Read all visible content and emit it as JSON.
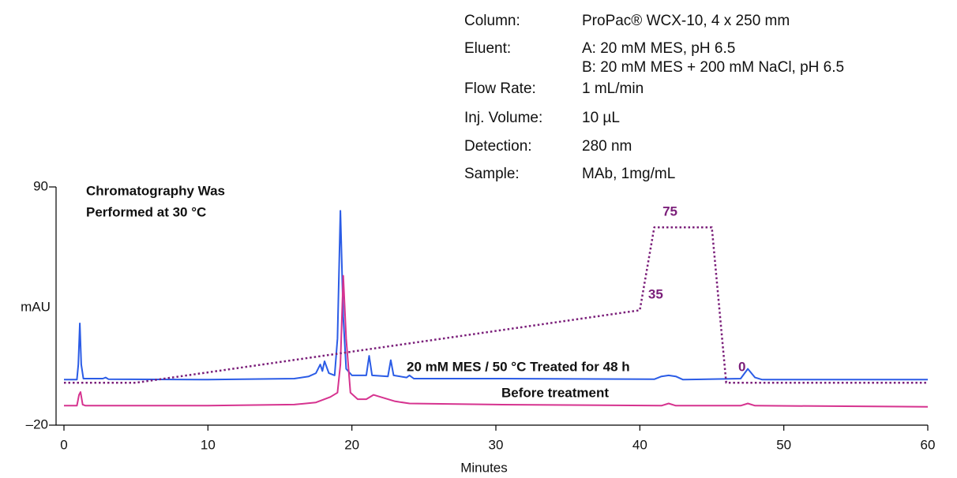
{
  "chart_data": {
    "type": "line",
    "xlabel": "Minutes",
    "ylabel": "mAU",
    "annotation": [
      "Chromatography Was",
      "Performed at 30 °C"
    ],
    "conditions": [
      {
        "label": "Column:",
        "value": [
          "ProPac® WCX-10, 4 x 250 mm"
        ]
      },
      {
        "label": "Eluent:",
        "value": [
          "A: 20 mM MES, pH 6.5",
          "B: 20 mM MES + 200 mM NaCl, pH 6.5"
        ]
      },
      {
        "label": "Flow Rate:",
        "value": [
          "1 mL/min"
        ]
      },
      {
        "label": "Inj. Volume:",
        "value": [
          "10 µL"
        ]
      },
      {
        "label": "Detection:",
        "value": [
          "280 nm"
        ]
      },
      {
        "label": "Sample:",
        "value": [
          "MAb, 1mg/mL"
        ]
      }
    ],
    "xlim": [
      0,
      60
    ],
    "xticks": [
      0,
      10,
      20,
      30,
      40,
      50,
      60
    ],
    "ylim": [
      -20,
      90
    ],
    "yticks": [
      {
        "value": -20,
        "label": "–20"
      },
      90
    ],
    "y2lim": [
      -20.5,
      94.5
    ],
    "series": [
      {
        "name": "20 mM MES / 50 °C Treated for 48 h",
        "color": "#2b5ce6",
        "x": [
          0,
          0.9,
          1.0,
          1.1,
          1.2,
          1.35,
          2.7,
          2.9,
          3.1,
          10,
          16,
          17,
          17.5,
          17.8,
          17.95,
          18.1,
          18.4,
          18.8,
          19.0,
          19.2,
          19.4,
          19.6,
          20,
          21.0,
          21.2,
          21.4,
          22.5,
          22.7,
          22.9,
          23.8,
          24.0,
          24.3,
          30,
          41,
          41.5,
          42,
          42.5,
          43,
          47,
          47.5,
          48,
          48.5,
          60
        ],
        "values": [
          1,
          1,
          8,
          27,
          8,
          1.5,
          1.5,
          2,
          1.2,
          1,
          1.5,
          2.5,
          4,
          8,
          5,
          9.5,
          4,
          3,
          20,
          79,
          30,
          6,
          3,
          3,
          12,
          3,
          2.5,
          10,
          3,
          2,
          3,
          1.5,
          1.5,
          1.2,
          2.5,
          3,
          2.5,
          1,
          1.5,
          6,
          2,
          1,
          1
        ]
      },
      {
        "name": "Before treatment",
        "color": "#d6338f",
        "x": [
          0,
          0.9,
          1.05,
          1.15,
          1.3,
          1.5,
          10,
          16,
          17.5,
          18.5,
          19.0,
          19.2,
          19.4,
          19.6,
          19.9,
          20.4,
          21,
          21.5,
          22,
          23,
          24,
          30,
          41.5,
          42,
          42.5,
          47,
          47.5,
          48,
          60
        ],
        "values": [
          -11,
          -11,
          -6,
          -4.7,
          -10.5,
          -11,
          -11,
          -10.5,
          -9.5,
          -7,
          -5,
          8,
          49,
          20,
          -5,
          -8,
          -8,
          -6,
          -7,
          -9,
          -10,
          -10.5,
          -11,
          -10,
          -11,
          -11,
          -10,
          -11,
          -11.5
        ]
      },
      {
        "color": "#7b1f7a",
        "axis": "y2",
        "dashed": true,
        "x": [
          0,
          5,
          40,
          41,
          45,
          46,
          60
        ],
        "values": [
          0,
          0,
          35,
          75,
          75,
          0,
          0
        ],
        "value_labels": [
          null,
          null,
          "35",
          "75",
          null,
          "0",
          null
        ]
      }
    ]
  }
}
